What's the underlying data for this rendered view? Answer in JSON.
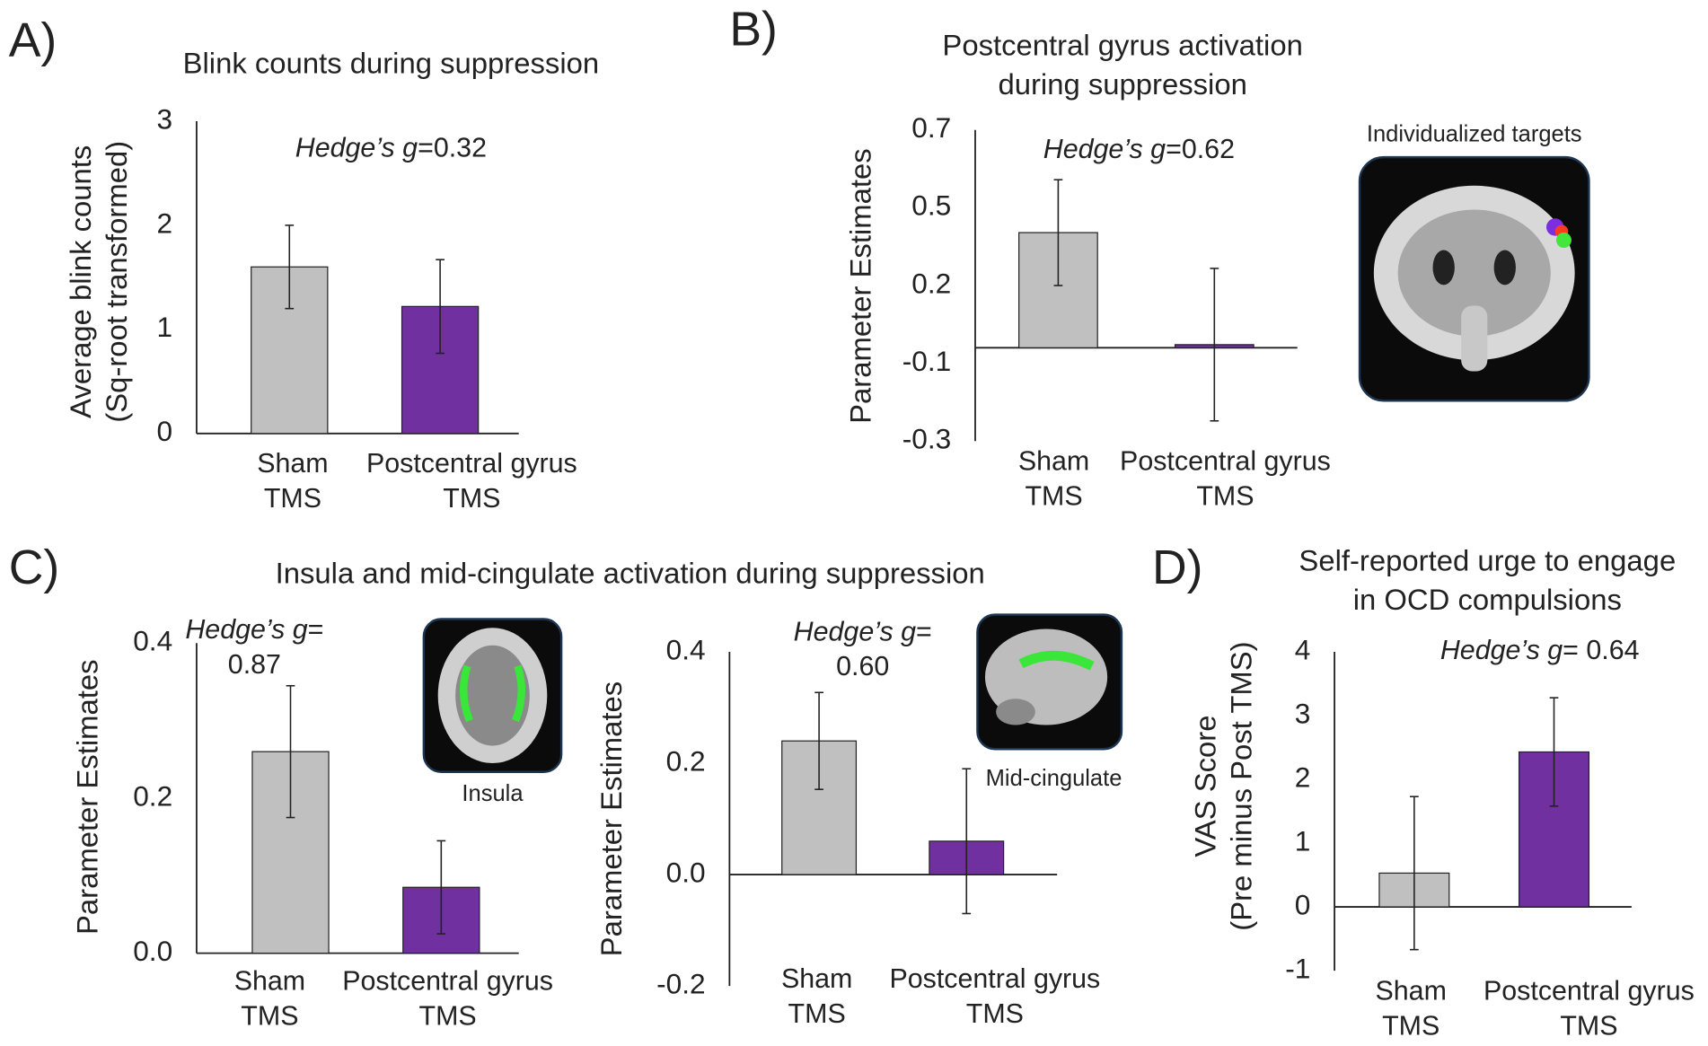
{
  "chart_data": [
    {
      "type": "bar",
      "panel": "A)",
      "title": "Blink counts during suppression",
      "ylabel": "Average blink counts\n(Sq-root transformed)",
      "categories": [
        "Sham\nTMS",
        "Postcentral gyrus\nTMS"
      ],
      "values": [
        1.6,
        1.22
      ],
      "errors": [
        0.4,
        0.45
      ],
      "colors": [
        "#c0c0c0",
        "#7030a0"
      ],
      "ylim": [
        0,
        3
      ],
      "yticks": [
        0,
        1,
        2,
        3
      ],
      "annotation_lines": [
        [
          {
            "text": "Hedge’s g",
            "italic": true
          },
          {
            "text": "=0.32"
          }
        ]
      ]
    },
    {
      "type": "bar",
      "panel": "B)",
      "title": "Postcentral gyrus activation\nduring suppression",
      "ylabel": "Parameter Estimates",
      "categories": [
        "Sham\nTMS",
        "Postcentral gyrus\nTMS"
      ],
      "values": [
        0.37,
        0.01
      ],
      "errors": [
        0.17,
        0.245
      ],
      "colors": [
        "#c0c0c0",
        "#7030a0"
      ],
      "ylim": [
        -0.3,
        0.7
      ],
      "yticks": [
        -0.3,
        {
          "value": -0.05,
          "label": "-0.1"
        },
        0.2,
        {
          "value": 0.45,
          "label": "0.5"
        },
        0.7
      ],
      "annotation_lines": [
        [
          {
            "text": "Hedge’s g",
            "italic": true
          },
          {
            "text": "=0.62"
          }
        ]
      ],
      "image_label": "Individualized targets"
    },
    {
      "type": "bar",
      "panel": "C)",
      "title": "Insula and mid-cingulate activation during suppression",
      "ylabel": "Parameter Estimates",
      "categories": [
        "Sham\nTMS",
        "Postcentral gyrus\nTMS"
      ],
      "values": [
        0.26,
        0.085
      ],
      "errors": [
        0.085,
        0.06
      ],
      "colors": [
        "#c0c0c0",
        "#7030a0"
      ],
      "ylim": [
        0,
        0.4
      ],
      "yticks": [
        {
          "value": 0,
          "label": "0.0"
        },
        0.2,
        0.4
      ],
      "annotation_lines": [
        [
          {
            "text": "Hedge’s g",
            "italic": true
          },
          {
            "text": "="
          }
        ],
        [
          {
            "text": "0.87"
          }
        ]
      ],
      "image_label": "Insula"
    },
    {
      "type": "bar",
      "ylabel": "Parameter Estimates",
      "categories": [
        "Sham\nTMS",
        "Postcentral gyrus\nTMS"
      ],
      "values": [
        0.24,
        0.06
      ],
      "errors": [
        0.087,
        0.13
      ],
      "colors": [
        "#c0c0c0",
        "#7030a0"
      ],
      "ylim": [
        -0.2,
        0.4
      ],
      "yticks": [
        -0.2,
        {
          "value": 0,
          "label": "0.0"
        },
        0.2,
        0.4
      ],
      "annotation_lines": [
        [
          {
            "text": "Hedge’s g",
            "italic": true
          },
          {
            "text": "="
          }
        ],
        [
          {
            "text": "0.60"
          }
        ]
      ],
      "image_label": "Mid-cingulate"
    },
    {
      "type": "bar",
      "panel": "D)",
      "title": "Self-reported urge to engage\nin OCD compulsions",
      "ylabel": "VAS Score\n(Pre minus Post TMS)",
      "categories": [
        "Sham\nTMS",
        "Postcentral gyrus\nTMS"
      ],
      "values": [
        0.53,
        2.43
      ],
      "errors": [
        1.2,
        0.85
      ],
      "colors": [
        "#c0c0c0",
        "#7030a0"
      ],
      "ylim": [
        -1,
        4
      ],
      "yticks": [
        -1,
        0,
        1,
        2,
        3,
        4
      ],
      "annotation_lines": [
        [
          {
            "text": "Hedge’s g",
            "italic": true
          },
          {
            "text": "= 0.64"
          }
        ]
      ]
    }
  ]
}
